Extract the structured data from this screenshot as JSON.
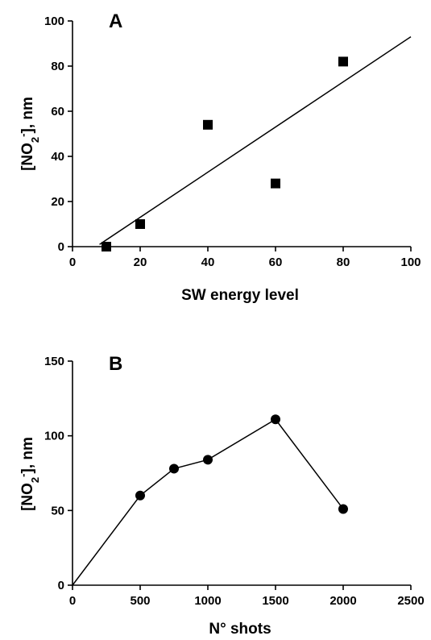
{
  "chart_data": [
    {
      "type": "scatter",
      "panel_label": "A",
      "xlabel": "SW energy level",
      "ylabel_main": "[NO",
      "ylabel_sub": "2",
      "ylabel_sup": "-",
      "ylabel_tail": "], nm",
      "xlim": [
        0,
        100
      ],
      "ylim": [
        0,
        100
      ],
      "x_ticks": [
        0,
        20,
        40,
        60,
        80,
        100
      ],
      "y_ticks": [
        0,
        20,
        40,
        60,
        80,
        100
      ],
      "marker": "square",
      "series": [
        {
          "x": [
            10,
            20,
            40,
            60,
            80
          ],
          "y": [
            0,
            10,
            54,
            28,
            82
          ]
        }
      ],
      "fit_line": {
        "x": [
          8,
          100
        ],
        "y": [
          1,
          93
        ]
      },
      "grid": false
    },
    {
      "type": "line",
      "panel_label": "B",
      "xlabel": "N° shots",
      "ylabel_main": "[NO",
      "ylabel_sub": "2",
      "ylabel_sup": "-",
      "ylabel_tail": "], nm",
      "xlim": [
        0,
        2500
      ],
      "ylim": [
        0,
        150
      ],
      "x_ticks": [
        0,
        500,
        1000,
        1500,
        2000,
        2500
      ],
      "y_ticks": [
        0,
        50,
        100,
        150
      ],
      "marker": "circle",
      "series": [
        {
          "x": [
            0,
            500,
            750,
            1000,
            1500,
            2000
          ],
          "y": [
            0,
            60,
            78,
            84,
            111,
            51
          ]
        }
      ],
      "grid": false
    }
  ]
}
